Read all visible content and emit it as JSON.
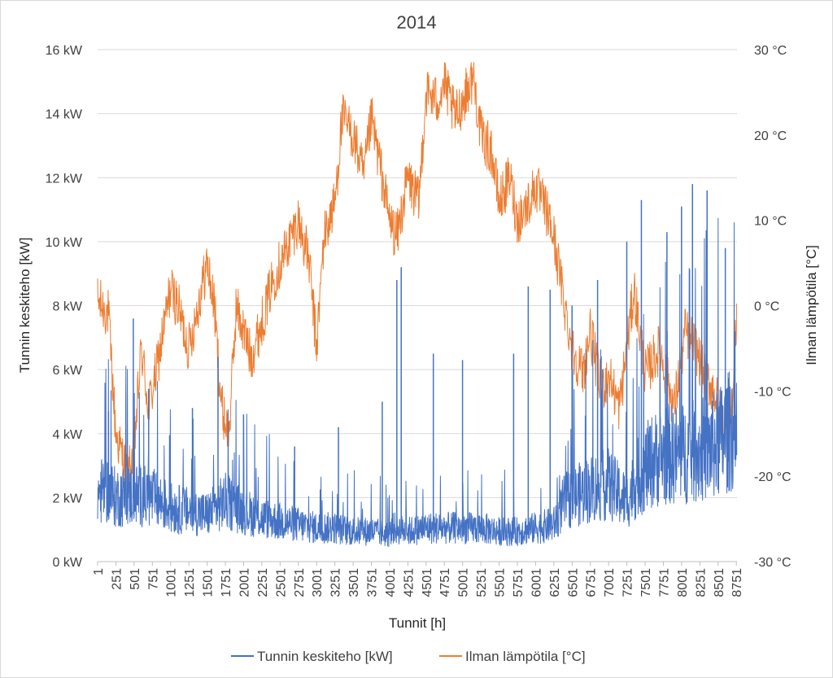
{
  "chart_data": {
    "type": "line",
    "title": "2014",
    "xlabel": "Tunnit [h]",
    "ylabel": "Tunnin keskiteho [kW]",
    "y2label": "Ilman lämpötila [°C]",
    "xlim": [
      1,
      8760
    ],
    "ylim": [
      0,
      16
    ],
    "y2lim": [
      -30,
      30
    ],
    "x_ticks": [
      "1",
      "251",
      "501",
      "751",
      "1001",
      "1251",
      "1501",
      "1751",
      "2001",
      "2251",
      "2501",
      "2751",
      "3001",
      "3251",
      "3501",
      "3751",
      "4001",
      "4251",
      "4501",
      "4751",
      "5001",
      "5251",
      "5501",
      "5751",
      "6001",
      "6251",
      "6501",
      "6751",
      "7001",
      "7251",
      "7501",
      "7751",
      "8001",
      "8251",
      "8501",
      "8751"
    ],
    "y_ticks": [
      "0 kW",
      "2 kW",
      "4 kW",
      "6 kW",
      "8 kW",
      "10 kW",
      "12 kW",
      "14 kW",
      "16 kW"
    ],
    "y2_ticks": [
      "-30 °C",
      "-20 °C",
      "-10 °C",
      "0 °C",
      "10 °C",
      "20 °C",
      "30 °C"
    ],
    "grid": true,
    "legend_position": "bottom",
    "series": [
      {
        "name": "Tunnin keskiteho [kW]",
        "axis": "left",
        "color": "#4472c4",
        "x": [
          1,
          100,
          250,
          500,
          750,
          1000,
          1250,
          1500,
          1750,
          2000,
          2250,
          2500,
          2750,
          3000,
          3250,
          3500,
          3750,
          4000,
          4050,
          4250,
          4500,
          4750,
          5000,
          5250,
          5500,
          5750,
          6000,
          6250,
          6400,
          6600,
          6800,
          7000,
          7250,
          7400,
          7600,
          7800,
          8000,
          8250,
          8500,
          8700,
          8760
        ],
        "values": [
          2.0,
          2.2,
          1.9,
          2.0,
          1.9,
          1.6,
          1.5,
          1.4,
          1.8,
          1.5,
          1.3,
          1.2,
          1.1,
          1.0,
          1.0,
          0.9,
          0.9,
          0.8,
          1.0,
          0.9,
          1.0,
          1.0,
          1.0,
          1.0,
          0.9,
          0.9,
          1.0,
          1.1,
          1.8,
          2.0,
          2.2,
          2.3,
          1.8,
          2.5,
          3.0,
          3.2,
          3.2,
          3.3,
          3.5,
          4.0,
          2.5
        ],
        "peaks": [
          {
            "x": 150,
            "value": 4.7
          },
          {
            "x": 490,
            "value": 7.6
          },
          {
            "x": 700,
            "value": 5.4
          },
          {
            "x": 1300,
            "value": 4.8
          },
          {
            "x": 1650,
            "value": 6.4
          },
          {
            "x": 2000,
            "value": 4.6
          },
          {
            "x": 2700,
            "value": 3.6
          },
          {
            "x": 3300,
            "value": 4.2
          },
          {
            "x": 3900,
            "value": 5.0
          },
          {
            "x": 4100,
            "value": 8.8
          },
          {
            "x": 4160,
            "value": 9.2
          },
          {
            "x": 4600,
            "value": 6.5
          },
          {
            "x": 5000,
            "value": 6.3
          },
          {
            "x": 5700,
            "value": 6.5
          },
          {
            "x": 5900,
            "value": 8.6
          },
          {
            "x": 6200,
            "value": 8.5
          },
          {
            "x": 6500,
            "value": 8.0
          },
          {
            "x": 6850,
            "value": 8.8
          },
          {
            "x": 7250,
            "value": 10.0
          },
          {
            "x": 7450,
            "value": 11.3
          },
          {
            "x": 7800,
            "value": 10.3
          },
          {
            "x": 8000,
            "value": 11.1
          },
          {
            "x": 8150,
            "value": 11.8
          },
          {
            "x": 8350,
            "value": 11.6
          },
          {
            "x": 8600,
            "value": 9.8
          }
        ]
      },
      {
        "name": "Ilman lämpötila [°C]",
        "axis": "right",
        "color": "#ed7d31",
        "x": [
          1,
          150,
          250,
          350,
          420,
          500,
          600,
          700,
          800,
          1000,
          1100,
          1250,
          1400,
          1500,
          1600,
          1700,
          1800,
          1900,
          2000,
          2100,
          2250,
          2400,
          2500,
          2650,
          2750,
          2900,
          3000,
          3100,
          3250,
          3350,
          3500,
          3650,
          3750,
          3900,
          4000,
          4100,
          4250,
          4400,
          4500,
          4650,
          4750,
          4900,
          5000,
          5150,
          5250,
          5400,
          5500,
          5650,
          5750,
          5900,
          6000,
          6150,
          6250,
          6400,
          6500,
          6650,
          6750,
          6900,
          7000,
          7150,
          7250,
          7350,
          7500,
          7700,
          7900,
          8050,
          8200,
          8300,
          8450,
          8600,
          8700,
          8760
        ],
        "values": [
          0.5,
          -1,
          -15,
          -18,
          -20,
          -17,
          -5,
          -12,
          -8,
          2,
          0,
          -5,
          1,
          5,
          0,
          -12,
          -15,
          0,
          -3,
          -6,
          -2,
          3,
          5,
          8,
          10,
          5,
          -5,
          8,
          12,
          22,
          20,
          15,
          22,
          15,
          10,
          8,
          15,
          12,
          25,
          24,
          26,
          22,
          24,
          27,
          20,
          18,
          12,
          15,
          10,
          12,
          14,
          11,
          8,
          0,
          -5,
          -8,
          -3,
          -10,
          -8,
          -12,
          -5,
          2,
          -8,
          -5,
          -12,
          -3,
          -5,
          -8,
          -10,
          -15,
          -12,
          0
        ]
      }
    ]
  }
}
